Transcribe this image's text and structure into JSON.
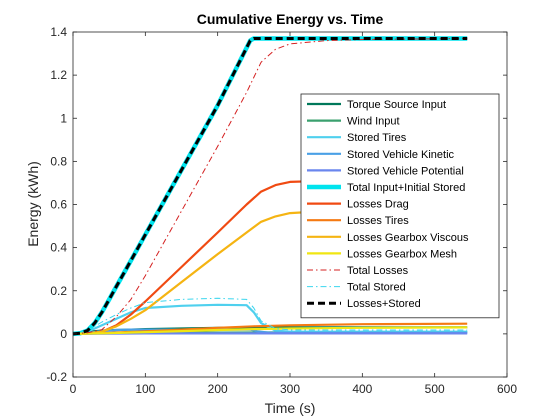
{
  "chart_data": {
    "type": "line",
    "title": "Cumulative Energy vs. Time",
    "xlabel": "Time (s)",
    "ylabel": "Energy (kWh)",
    "xlim": [
      0,
      600
    ],
    "ylim": [
      -0.2,
      1.4
    ],
    "xticks": [
      0,
      100,
      200,
      300,
      400,
      500,
      600
    ],
    "yticks": [
      -0.2,
      0,
      0.2,
      0.4,
      0.6,
      0.8,
      1,
      1.2,
      1.4
    ],
    "grid": false,
    "legend_position": "right",
    "series": [
      {
        "name": "Torque Source Input",
        "color": "#00785a",
        "dash": "solid",
        "width": 2.2,
        "x": [
          0,
          20,
          40,
          60,
          80,
          100,
          150,
          200,
          245,
          255,
          300,
          400,
          545
        ],
        "y": [
          0,
          0.01,
          0.015,
          0.018,
          0.02,
          0.022,
          0.025,
          0.028,
          0.03,
          0.03,
          0.03,
          0.03,
          0.03
        ]
      },
      {
        "name": "Wind Input",
        "color": "#3aa06e",
        "dash": "solid",
        "width": 2.2,
        "x": [
          0,
          50,
          100,
          200,
          300,
          400,
          545
        ],
        "y": [
          0,
          0.003,
          0.005,
          0.006,
          0.007,
          0.008,
          0.008
        ]
      },
      {
        "name": "Stored Tires",
        "color": "#4fd0ee",
        "dash": "solid",
        "width": 2.2,
        "x": [
          0,
          20,
          40,
          60,
          80,
          100,
          150,
          200,
          240,
          250,
          260,
          280,
          300,
          400,
          545
        ],
        "y": [
          0,
          0.01,
          0.04,
          0.07,
          0.1,
          0.12,
          0.13,
          0.135,
          0.133,
          0.1,
          0.05,
          0.015,
          0.01,
          0.01,
          0.01
        ]
      },
      {
        "name": "Stored Vehicle Kinetic",
        "color": "#4aa0e6",
        "dash": "solid",
        "width": 2.2,
        "x": [
          0,
          20,
          40,
          60,
          80,
          100,
          200,
          245,
          255,
          270,
          300,
          400,
          545
        ],
        "y": [
          0,
          0.005,
          0.013,
          0.018,
          0.02,
          0.02,
          0.02,
          0.02,
          0.012,
          0.006,
          0.005,
          0.005,
          0.005
        ]
      },
      {
        "name": "Stored Vehicle Potential",
        "color": "#6a86ee",
        "dash": "solid",
        "width": 2.2,
        "x": [
          0,
          100,
          200,
          300,
          400,
          545
        ],
        "y": [
          0,
          0.002,
          0.002,
          0.002,
          0.002,
          0.002
        ]
      },
      {
        "name": "Total Input+Initial Stored",
        "color": "#00e4ee",
        "dash": "solid",
        "width": 4.5,
        "x": [
          0,
          10,
          20,
          30,
          40,
          50,
          60,
          80,
          100,
          150,
          200,
          245,
          250,
          300,
          400,
          545
        ],
        "y": [
          0,
          0.003,
          0.015,
          0.05,
          0.1,
          0.16,
          0.22,
          0.34,
          0.46,
          0.76,
          1.06,
          1.36,
          1.37,
          1.37,
          1.37,
          1.37
        ]
      },
      {
        "name": "Losses Drag",
        "color": "#f04a12",
        "dash": "solid",
        "width": 2.2,
        "x": [
          0,
          20,
          40,
          60,
          80,
          100,
          150,
          200,
          240,
          260,
          280,
          300,
          350,
          400,
          545
        ],
        "y": [
          0,
          0.002,
          0.01,
          0.04,
          0.09,
          0.15,
          0.31,
          0.47,
          0.6,
          0.66,
          0.69,
          0.705,
          0.71,
          0.71,
          0.71
        ]
      },
      {
        "name": "Losses Tires",
        "color": "#f57a12",
        "dash": "solid",
        "width": 2.2,
        "x": [
          0,
          50,
          100,
          150,
          200,
          250,
          300,
          400,
          545
        ],
        "y": [
          0,
          0.005,
          0.012,
          0.02,
          0.028,
          0.035,
          0.04,
          0.045,
          0.047
        ]
      },
      {
        "name": "Losses Gearbox Viscous",
        "color": "#f5b412",
        "dash": "solid",
        "width": 2.2,
        "x": [
          0,
          20,
          40,
          60,
          80,
          100,
          150,
          200,
          240,
          260,
          280,
          300,
          350,
          400,
          545
        ],
        "y": [
          0,
          0.002,
          0.01,
          0.035,
          0.07,
          0.11,
          0.24,
          0.37,
          0.47,
          0.52,
          0.545,
          0.56,
          0.57,
          0.575,
          0.575
        ]
      },
      {
        "name": "Losses Gearbox Mesh",
        "color": "#f0e612",
        "dash": "solid",
        "width": 2.2,
        "x": [
          0,
          50,
          100,
          150,
          200,
          250,
          300,
          400,
          545
        ],
        "y": [
          0,
          0.003,
          0.008,
          0.013,
          0.018,
          0.022,
          0.025,
          0.028,
          0.03
        ]
      },
      {
        "name": "Total Losses",
        "color": "#d42020",
        "dash": "dashdot",
        "width": 1.0,
        "x": [
          0,
          20,
          40,
          60,
          80,
          100,
          150,
          200,
          240,
          260,
          280,
          300,
          350,
          400,
          545
        ],
        "y": [
          0,
          0.005,
          0.02,
          0.08,
          0.16,
          0.27,
          0.57,
          0.87,
          1.12,
          1.26,
          1.32,
          1.345,
          1.36,
          1.365,
          1.37
        ]
      },
      {
        "name": "Total Stored",
        "color": "#3ad6ee",
        "dash": "dashdot",
        "width": 1.0,
        "x": [
          0,
          20,
          40,
          60,
          80,
          100,
          150,
          200,
          240,
          250,
          260,
          280,
          300,
          400,
          545
        ],
        "y": [
          0,
          0.015,
          0.055,
          0.09,
          0.12,
          0.145,
          0.16,
          0.165,
          0.16,
          0.12,
          0.06,
          0.025,
          0.018,
          0.018,
          0.018
        ]
      },
      {
        "name": "Losses+Stored",
        "color": "#000000",
        "dash": "dashed",
        "width": 3.0,
        "x": [
          0,
          10,
          20,
          30,
          40,
          50,
          60,
          80,
          100,
          150,
          200,
          245,
          250,
          300,
          400,
          545
        ],
        "y": [
          0,
          0.003,
          0.015,
          0.05,
          0.1,
          0.16,
          0.22,
          0.34,
          0.46,
          0.76,
          1.06,
          1.36,
          1.37,
          1.37,
          1.37,
          1.37
        ]
      }
    ]
  }
}
